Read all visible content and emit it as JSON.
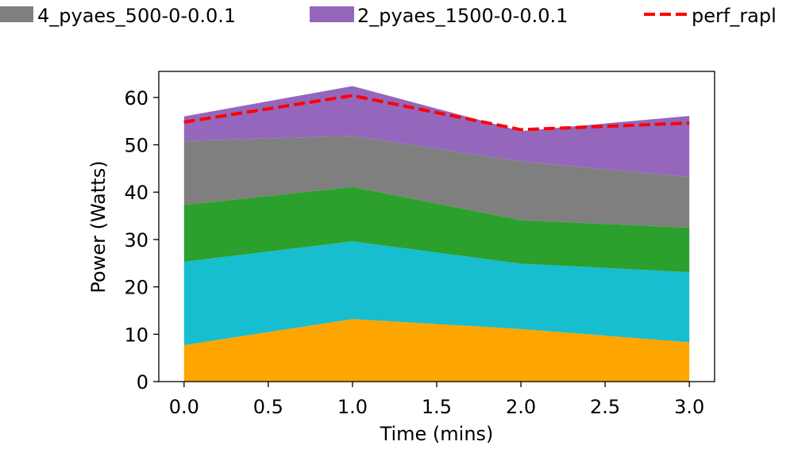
{
  "chart_data": {
    "type": "area",
    "stacked": true,
    "xlabel": "Time (mins)",
    "ylabel": "Power (Watts)",
    "xlim": [
      -0.15,
      3.15
    ],
    "ylim": [
      0,
      65.5
    ],
    "x": [
      0,
      1,
      2,
      3
    ],
    "xticks": [
      "0.0",
      "0.5",
      "1.0",
      "1.5",
      "2.0",
      "2.5",
      "3.0"
    ],
    "yticks": [
      "0",
      "10",
      "20",
      "30",
      "40",
      "50",
      "60"
    ],
    "grid": false,
    "legend_position": "top",
    "series": [
      {
        "color": "#ffa500",
        "values": [
          7.7,
          13.2,
          11.1,
          8.3
        ]
      },
      {
        "color": "#17becf",
        "values": [
          17.6,
          16.4,
          13.8,
          14.8
        ]
      },
      {
        "color": "#2ca02c",
        "values": [
          12.0,
          11.5,
          9.2,
          9.4
        ]
      },
      {
        "name": "4_pyaes_500-0-0.0.1",
        "color": "#7f7f7f",
        "values": [
          13.5,
          10.8,
          12.4,
          10.7
        ]
      },
      {
        "name": "2_pyaes_1500-0-0.0.1",
        "color": "#9467bd",
        "values": [
          5.2,
          10.5,
          6.4,
          12.9
        ]
      }
    ],
    "line_series": [
      {
        "name": "perf_rapl",
        "color": "#ff0000",
        "style": "dashed",
        "values": [
          54.8,
          60.4,
          53.2,
          54.6
        ]
      }
    ]
  }
}
